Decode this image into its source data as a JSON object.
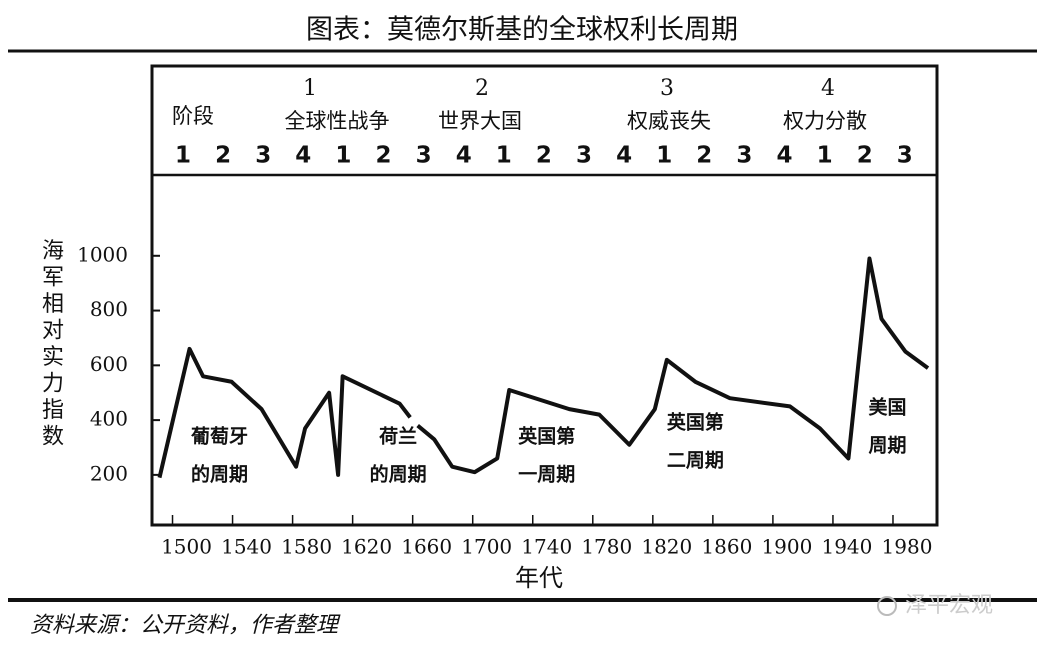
{
  "chart_data": {
    "type": "line",
    "title": "图表：莫德尔斯基的全球权利长周期",
    "stage_label": "阶段",
    "phases": [
      {
        "number": 1,
        "label": "全球性战争"
      },
      {
        "number": 2,
        "label": "世界大国"
      },
      {
        "number": 3,
        "label": "权威丧失"
      },
      {
        "number": 4,
        "label": "权力分散"
      }
    ],
    "stage_digits": [
      1,
      2,
      3,
      4,
      1,
      2,
      3,
      4,
      1,
      2,
      3,
      4,
      1,
      2,
      3,
      4,
      1,
      2,
      3
    ],
    "y_label": "海军相对实力指数",
    "x_label": "年代",
    "x": [
      1482,
      1502,
      1511,
      1530,
      1550,
      1573,
      1579,
      1595,
      1601,
      1604,
      1642,
      1649,
      1650,
      1654,
      1665,
      1677,
      1692,
      1707,
      1715,
      1755,
      1775,
      1795,
      1812,
      1820,
      1839,
      1862,
      1902,
      1922,
      1941,
      1955,
      1963,
      1979,
      1994
    ],
    "series": [
      {
        "name": "海军相对实力指数",
        "color": "#111111",
        "values": [
          190,
          660,
          560,
          540,
          440,
          230,
          370,
          500,
          200,
          560,
          460,
          410,
          null,
          380,
          330,
          230,
          210,
          260,
          510,
          440,
          420,
          310,
          440,
          620,
          540,
          480,
          450,
          370,
          260,
          990,
          770,
          650,
          590
        ]
      }
    ],
    "xlim": [
      1477,
      2000
    ],
    "xticks": [
      1500,
      1540,
      1580,
      1620,
      1660,
      1700,
      1740,
      1780,
      1820,
      1860,
      1900,
      1940,
      1980
    ],
    "ylim": [
      17,
      1295
    ],
    "yticks": [
      200,
      400,
      600,
      800,
      1000
    ],
    "annotations": [
      {
        "x": 1522,
        "lines": [
          "葡萄牙",
          "的周期"
        ]
      },
      {
        "x": 1641,
        "lines": [
          "荷兰",
          "的周期"
        ]
      },
      {
        "x": 1740,
        "lines": [
          "英国第",
          "一周期"
        ]
      },
      {
        "x": 1839,
        "lines": [
          "英国第",
          "二周期"
        ]
      },
      {
        "x": 1967,
        "lines": [
          "美国",
          "周期"
        ]
      }
    ],
    "source": "资料来源：公开资料，作者整理",
    "watermark": "泽平宏观"
  }
}
